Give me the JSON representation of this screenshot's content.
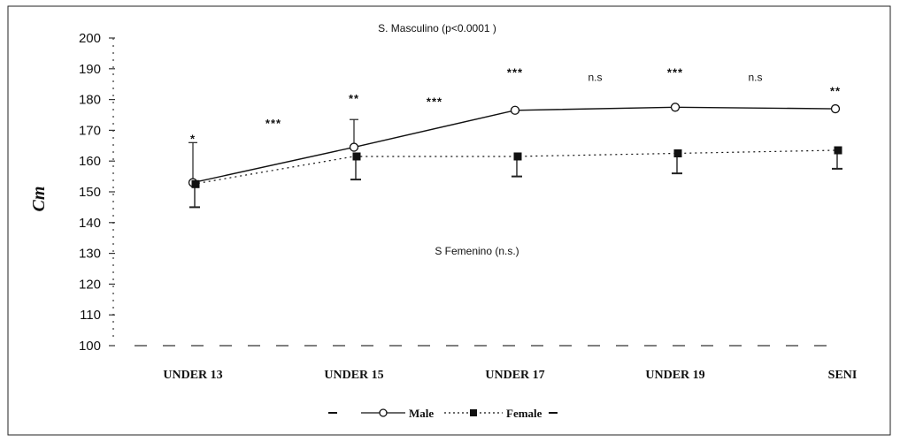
{
  "chart_data": {
    "type": "line",
    "title": "",
    "ylabel": "Cm",
    "xlabel": "",
    "ylim": [
      100,
      200
    ],
    "yticks": [
      "100",
      "110",
      "120",
      "130",
      "140",
      "150",
      "160",
      "170",
      "180",
      "190",
      "200"
    ],
    "categories": [
      "UNDER 13",
      "UNDER 15",
      "UNDER 17",
      "UNDER 19",
      "SENI"
    ],
    "annotations": {
      "male_test": "S. Masculino (p<0.0001 )",
      "female_test": "S Femenino (n.s.)"
    },
    "series": [
      {
        "name": "Male",
        "values": [
          153,
          164.5,
          176.5,
          177.5,
          177
        ],
        "error_up": [
          166,
          173.5,
          null,
          null,
          null
        ],
        "error_down": [
          null,
          null,
          null,
          null,
          null
        ]
      },
      {
        "name": "Female",
        "values": [
          152.5,
          161.5,
          161.5,
          162.5,
          163.5
        ],
        "error_up": [
          null,
          null,
          null,
          null,
          null
        ],
        "error_down": [
          145,
          154,
          155,
          156,
          157.5
        ]
      }
    ],
    "significance": [
      {
        "position": 0,
        "label": "*",
        "y": 166
      },
      {
        "position": 0.5,
        "label": "***",
        "y": 171
      },
      {
        "position": 1,
        "label": "**",
        "y": 179
      },
      {
        "position": 1.5,
        "label": "***",
        "y": 178
      },
      {
        "position": 2,
        "label": "***",
        "y": 187.5
      },
      {
        "position": 2.5,
        "label": "n.s",
        "y": 186
      },
      {
        "position": 3,
        "label": "***",
        "y": 187.5
      },
      {
        "position": 3.5,
        "label": "n.s",
        "y": 186
      },
      {
        "position": 4,
        "label": "**",
        "y": 181.5
      }
    ],
    "legend": [
      "Male",
      "Female"
    ],
    "legend_placement": "bottom-center",
    "grid": false
  }
}
